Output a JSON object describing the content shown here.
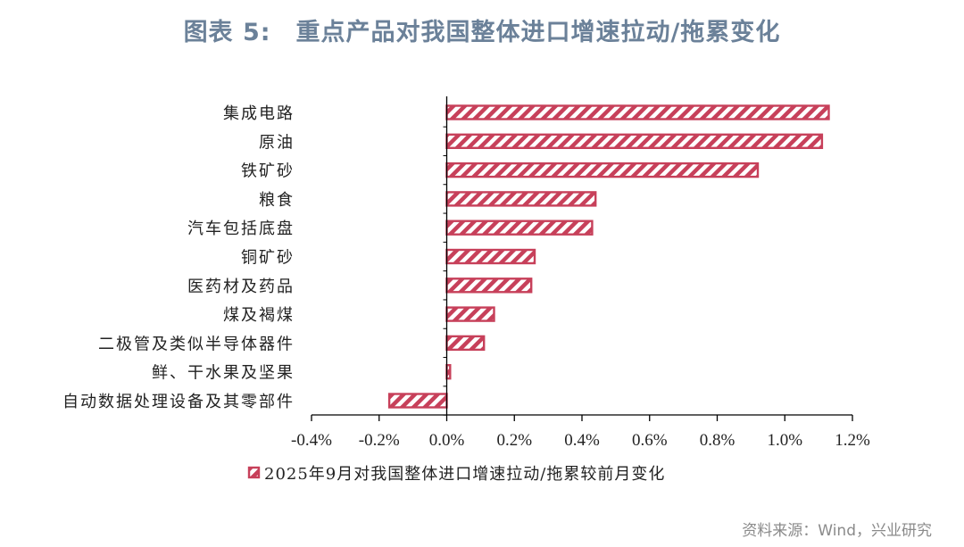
{
  "title": {
    "prefix": "图表 5:",
    "text": "重点产品对我国整体进口增速拉动/拖累变化"
  },
  "source": "资料来源：Wind，兴业研究",
  "colors": {
    "bar": "#c7405a",
    "title": "#6b8199"
  },
  "chart_data": {
    "type": "bar",
    "orientation": "horizontal",
    "categories": [
      "集成电路",
      "原油",
      "铁矿砂",
      "粮食",
      "汽车包括底盘",
      "铜矿砂",
      "医药材及药品",
      "煤及褐煤",
      "二极管及类似半导体器件",
      "鲜、干水果及坚果",
      "自动数据处理设备及其零部件"
    ],
    "series": [
      {
        "name": "2025年9月对我国整体进口增速拉动/拖累较前月变化",
        "values": [
          1.13,
          1.11,
          0.92,
          0.44,
          0.43,
          0.26,
          0.25,
          0.14,
          0.11,
          0.01,
          -0.17
        ]
      }
    ],
    "xlim": [
      -0.4,
      1.2
    ],
    "xticks": [
      -0.4,
      -0.2,
      0.0,
      0.2,
      0.4,
      0.6,
      0.8,
      1.0,
      1.2
    ],
    "xtick_labels": [
      "-0.4%",
      "-0.2%",
      "0.0%",
      "0.2%",
      "0.4%",
      "0.6%",
      "0.8%",
      "1.0%",
      "1.2%"
    ],
    "legend_position": "bottom",
    "grid": false
  }
}
